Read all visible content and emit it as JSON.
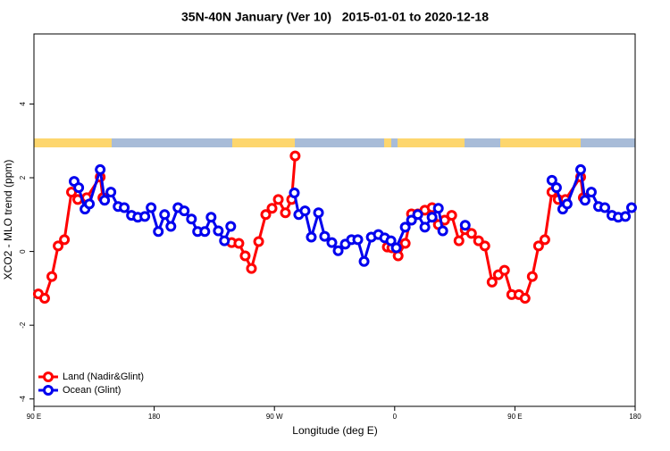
{
  "chart_data": {
    "type": "line",
    "title": "35N-40N January (Ver 10)   2015-01-01 to 2020-12-18",
    "xlabel": "Longitude (deg E)",
    "ylabel": "XCO2 - MLO trend (ppm)",
    "xlim": [
      90,
      540
    ],
    "ylim": [
      -4.2,
      5.9
    ],
    "xticks": [
      {
        "value": 90,
        "label": "90 E"
      },
      {
        "value": 180,
        "label": "180"
      },
      {
        "value": 270,
        "label": "90 W"
      },
      {
        "value": 360,
        "label": "0"
      },
      {
        "value": 450,
        "label": "90 E"
      },
      {
        "value": 540,
        "label": "180"
      }
    ],
    "yticks": [
      -4,
      -2,
      0,
      2,
      4
    ],
    "legend": "bottom-left",
    "series": [
      {
        "name": "Land (Nadir&Glint)",
        "color": "#ff0000",
        "x": [
          93.3,
          98.0,
          103.4,
          108.1,
          112.8,
          118.1,
          122.8,
          129.5,
          139.6,
          141.6,
          null,
          238.0,
          243.4,
          248.1,
          252.8,
          258.2,
          263.5,
          268.2,
          272.9,
          278.2,
          282.9,
          285.5,
          null,
          354.5,
          357.9,
          362.6,
          367.9,
          372.6,
          377.3,
          382.6,
          388.0,
          392.7,
          397.4,
          402.7,
          408.1,
          412.8,
          417.5,
          422.8,
          427.5,
          432.9,
          437.6,
          442.2,
          447.6,
          453.0,
          457.6,
          463.0,
          467.7,
          472.4,
          477.7,
          482.4,
          487.8,
          499.2,
          501.2
        ],
        "values": [
          -1.15,
          -1.27,
          -0.68,
          0.15,
          0.32,
          1.61,
          1.41,
          1.46,
          2.02,
          1.46,
          null,
          0.24,
          0.22,
          -0.12,
          -0.46,
          0.27,
          1.0,
          1.17,
          1.41,
          1.05,
          1.41,
          2.59,
          null,
          0.12,
          0.1,
          -0.12,
          0.22,
          1.02,
          1.02,
          1.12,
          1.19,
          0.73,
          0.85,
          0.98,
          0.29,
          0.59,
          0.49,
          0.29,
          0.15,
          -0.83,
          -0.63,
          -0.51,
          -1.17,
          -1.17,
          -1.27,
          -0.68,
          0.15,
          0.32,
          1.61,
          1.41,
          1.41,
          2.02,
          1.46
        ]
      },
      {
        "name": "Ocean (Glint)",
        "color": "#0000ee",
        "x": [
          120.1,
          123.5,
          128.2,
          131.5,
          139.6,
          142.9,
          147.6,
          153.0,
          157.6,
          163.0,
          167.7,
          173.0,
          177.7,
          183.1,
          187.8,
          192.5,
          197.8,
          202.5,
          207.9,
          212.5,
          217.9,
          222.6,
          228.0,
          232.6,
          237.3,
          null,
          284.9,
          288.2,
          292.9,
          297.6,
          303.0,
          307.6,
          313.0,
          317.7,
          323.0,
          327.7,
          332.4,
          337.1,
          342.5,
          347.8,
          352.5,
          357.2,
          361.2,
          367.9,
          372.6,
          377.3,
          382.6,
          388.0,
          392.7,
          396.0,
          null,
          412.8,
          null,
          477.7,
          481.1,
          485.8,
          489.1,
          499.2,
          502.5,
          507.2,
          512.6,
          517.3,
          522.6,
          527.3,
          532.7,
          537.3
        ],
        "values": [
          1.9,
          1.73,
          1.15,
          1.29,
          2.22,
          1.39,
          1.61,
          1.22,
          1.19,
          0.98,
          0.93,
          0.95,
          1.19,
          0.54,
          1.0,
          0.68,
          1.19,
          1.1,
          0.88,
          0.54,
          0.54,
          0.93,
          0.56,
          0.29,
          0.68,
          null,
          1.59,
          1.0,
          1.1,
          0.39,
          1.05,
          0.41,
          0.24,
          0.02,
          0.2,
          0.32,
          0.32,
          -0.27,
          0.39,
          0.46,
          0.37,
          0.29,
          0.1,
          0.66,
          0.85,
          1.0,
          0.66,
          0.93,
          1.17,
          0.56,
          null,
          0.71,
          null,
          1.93,
          1.73,
          1.15,
          1.29,
          2.22,
          1.39,
          1.61,
          1.22,
          1.19,
          0.98,
          0.93,
          0.95,
          1.19
        ]
      }
    ]
  }
}
